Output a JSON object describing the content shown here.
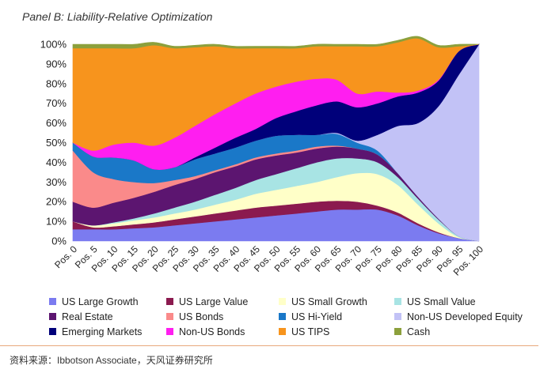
{
  "panel_title": "Panel B: Liability-Relative Optimization",
  "source_note": "资料来源：Ibbotson Associate，天风证券研究所",
  "chart_data": {
    "type": "area",
    "stacked": true,
    "title": "Panel B: Liability-Relative Optimization",
    "xlabel": "",
    "ylabel": "",
    "ylim": [
      0,
      100
    ],
    "y_ticks": [
      "0%",
      "10%",
      "20%",
      "30%",
      "40%",
      "50%",
      "60%",
      "70%",
      "80%",
      "90%",
      "100%"
    ],
    "categories": [
      "Pos. 0",
      "Pos. 5",
      "Pos. 10",
      "Pos. 15",
      "Pos. 20",
      "Pos. 25",
      "Pos. 30",
      "Pos. 35",
      "Pos. 40",
      "Pos. 45",
      "Pos. 50",
      "Pos. 55",
      "Pos. 60",
      "Pos. 65",
      "Pos. 70",
      "Pos. 75",
      "Pos. 80",
      "Pos. 85",
      "Pos. 90",
      "Pos. 95",
      "Pos. 100"
    ],
    "series": [
      {
        "name": "US Large Growth",
        "color": "#7b7bf0",
        "values": [
          6,
          6,
          6,
          6.5,
          7,
          8,
          9,
          10,
          11,
          12,
          13,
          14,
          15,
          16,
          16,
          16,
          13,
          8,
          4,
          1.5,
          0
        ]
      },
      {
        "name": "US Large Value",
        "color": "#8b1a4f",
        "values": [
          4,
          1,
          1.5,
          2,
          2.5,
          3,
          3.5,
          4,
          4.5,
          5,
          5,
          5,
          5,
          4.5,
          4,
          2,
          1.5,
          1,
          0.5,
          0,
          0
        ]
      },
      {
        "name": "US Small Growth",
        "color": "#ffffc8",
        "values": [
          0,
          1,
          1.5,
          2,
          2.5,
          3,
          3.5,
          4.5,
          5.5,
          7,
          8,
          9,
          10,
          12,
          14.5,
          16,
          14,
          9.5,
          4.5,
          0.5,
          0
        ]
      },
      {
        "name": "US Small Value",
        "color": "#a8e4e4",
        "values": [
          0,
          0,
          0.5,
          1,
          2,
          3,
          4,
          5,
          6,
          7,
          8,
          9,
          10,
          9.5,
          7.5,
          6,
          4,
          3,
          2,
          0.5,
          0
        ]
      },
      {
        "name": "Real Estate",
        "color": "#5c1570",
        "values": [
          10,
          9,
          10,
          10.5,
          11,
          11.5,
          11.5,
          11.5,
          11,
          10.5,
          9.5,
          8,
          7,
          6,
          5,
          4,
          2,
          1,
          0.5,
          0,
          0
        ]
      },
      {
        "name": "US Bonds",
        "color": "#fa8a8a",
        "values": [
          26,
          18,
          12,
          8,
          4.5,
          2.5,
          1.5,
          1,
          1,
          1,
          1,
          1,
          1,
          0.5,
          0,
          0,
          0,
          0,
          0,
          0,
          0
        ]
      },
      {
        "name": "US Hi-Yield",
        "color": "#1a78c8",
        "values": [
          4,
          8,
          11,
          11,
          7,
          6.5,
          8.5,
          8.5,
          8.5,
          8.5,
          9,
          8,
          6,
          6,
          3,
          2,
          0,
          0,
          0,
          0,
          0
        ]
      },
      {
        "name": "Non-US Developed Equity",
        "color": "#c2c2f6",
        "values": [
          0,
          0,
          0,
          0,
          0,
          0,
          0,
          0,
          0,
          0,
          0,
          0,
          0,
          0.5,
          1,
          8,
          24,
          37.5,
          57,
          82,
          100
        ]
      },
      {
        "name": "Emerging Markets",
        "color": "#00007a",
        "values": [
          0,
          0,
          0,
          0,
          0,
          0,
          1,
          3,
          5,
          6,
          9,
          12,
          15,
          16,
          17,
          16,
          15,
          15.5,
          13,
          12,
          0
        ]
      },
      {
        "name": "Non-US Bonds",
        "color": "#ff1ef0",
        "values": [
          0,
          3,
          6.5,
          9,
          12,
          15,
          16,
          17,
          17.5,
          18,
          16,
          15,
          13.5,
          11,
          7,
          6,
          2,
          1,
          0.5,
          0,
          0
        ]
      },
      {
        "name": "US TIPS",
        "color": "#f7941d",
        "values": [
          48,
          52,
          49,
          48,
          51,
          45.5,
          40,
          34.5,
          28,
          23,
          19.5,
          17,
          16.5,
          17,
          24,
          23,
          25.5,
          26.5,
          16.5,
          2.5,
          0
        ]
      },
      {
        "name": "Cash",
        "color": "#8ca03c",
        "values": [
          2,
          2,
          2,
          2,
          1.5,
          1,
          1,
          1,
          1,
          1,
          1,
          1,
          1,
          1,
          1,
          1,
          1,
          1,
          1,
          1,
          0
        ]
      }
    ],
    "legend": {
      "position": "bottom",
      "rows": [
        [
          "US Large Growth",
          "US Large Value",
          "US Small Growth",
          "US Small Value"
        ],
        [
          "Real Estate",
          "US Bonds",
          "US Hi-Yield",
          "Non-US Developed Equity"
        ],
        [
          "Emerging Markets",
          "Non-US Bonds",
          "US TIPS",
          "Cash"
        ]
      ]
    },
    "grid": false
  }
}
